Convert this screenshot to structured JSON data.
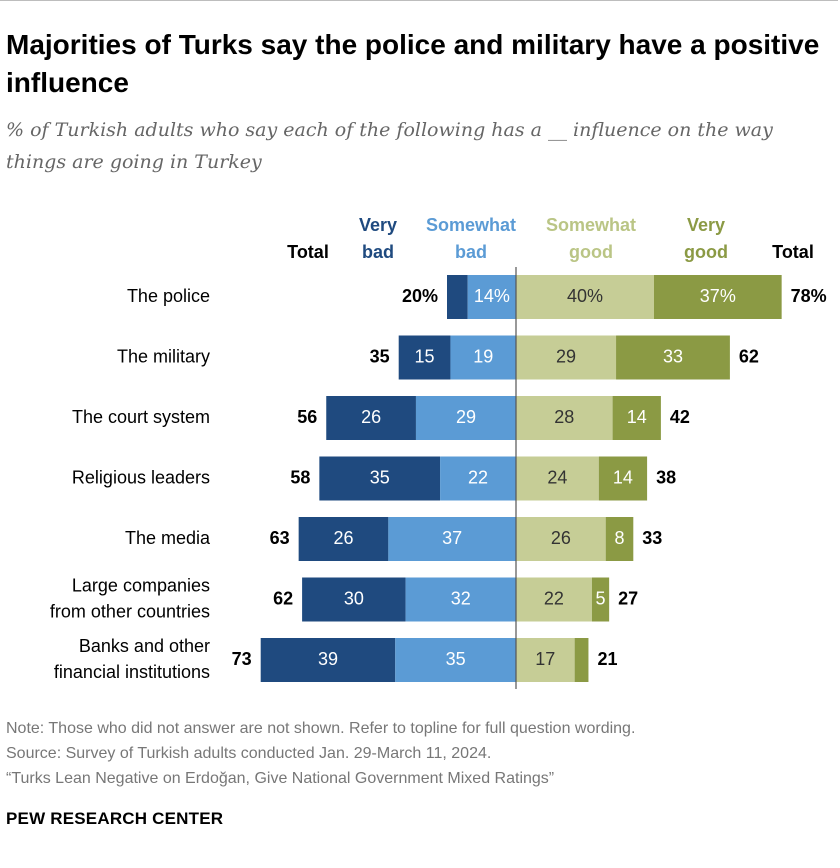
{
  "title": "Majorities of Turks say the police and military have a positive influence",
  "subtitle": "% of Turkish adults who say each of the following has a __ influence on the way things are going in Turkey",
  "notes": [
    "Note: Those who did not answer are not shown. Refer to topline for full question wording.",
    "Source: Survey of Turkish adults conducted Jan. 29-March 11, 2024.",
    "“Turks Lean Negative on Erdoğan, Give National Government Mixed Ratings”"
  ],
  "brand": "PEW RESEARCH CENTER",
  "colors": {
    "very_bad": "#1f4a7f",
    "somewhat_bad": "#5b9bd5",
    "somewhat_good": "#c6cd96",
    "very_good": "#8b9a44",
    "text": "#000000",
    "header_very_bad": "#1f4a7f",
    "header_somewhat_bad": "#5b9bd5",
    "header_somewhat_good": "#bac585",
    "header_very_good": "#8b9a44"
  },
  "chart_data": {
    "type": "bar",
    "orientation": "horizontal-diverging",
    "title": "Majorities of Turks say the police and military have a positive influence",
    "categories": [
      [
        "The police"
      ],
      [
        "The military"
      ],
      [
        "The court system"
      ],
      [
        "Religious leaders"
      ],
      [
        "The media"
      ],
      [
        "Large companies",
        "from other countries"
      ],
      [
        "Banks and other",
        "financial institutions"
      ]
    ],
    "headers": {
      "total_left": "Total",
      "very_bad": [
        "Very",
        "bad"
      ],
      "somewhat_bad": [
        "Somewhat",
        "bad"
      ],
      "somewhat_good": [
        "Somewhat",
        "good"
      ],
      "very_good": [
        "Very",
        "good"
      ],
      "total_right": "Total"
    },
    "series": [
      {
        "name": "Very bad",
        "values": [
          6,
          15,
          26,
          35,
          26,
          30,
          39
        ],
        "labels": [
          "",
          "15",
          "26",
          "35",
          "26",
          "30",
          "39"
        ]
      },
      {
        "name": "Somewhat bad",
        "values": [
          14,
          19,
          29,
          22,
          37,
          32,
          35
        ],
        "labels": [
          "14%",
          "19",
          "29",
          "22",
          "37",
          "32",
          "35"
        ]
      },
      {
        "name": "Somewhat good",
        "values": [
          40,
          29,
          28,
          24,
          26,
          22,
          17
        ],
        "labels": [
          "40%",
          "29",
          "28",
          "24",
          "26",
          "22",
          "17"
        ]
      },
      {
        "name": "Very good",
        "values": [
          37,
          33,
          14,
          14,
          8,
          5,
          4
        ],
        "labels": [
          "37%",
          "33",
          "14",
          "14",
          "8",
          "5",
          ""
        ]
      }
    ],
    "totals_bad": [
      "20%",
      "35",
      "56",
      "58",
      "63",
      "62",
      "73"
    ],
    "totals_good": [
      "78%",
      "62",
      "42",
      "38",
      "33",
      "27",
      "21"
    ],
    "xlabel": "",
    "ylabel": ""
  }
}
